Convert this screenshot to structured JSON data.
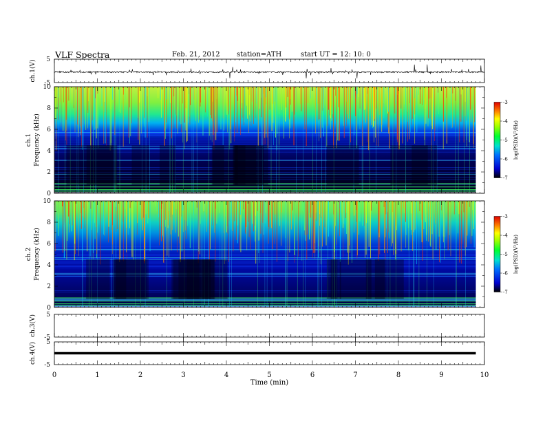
{
  "header": {
    "title": "VLF  Spectra",
    "date": "Feb. 21, 2012",
    "station": "station=ATH",
    "start": "start  UT  =    12: 10: 0"
  },
  "colors": {
    "spectrum_scale": [
      "#000000",
      "#0000e0",
      "#0078ff",
      "#00e0d0",
      "#00ff30",
      "#90ff00",
      "#ffff00",
      "#ff8000",
      "#e80000"
    ]
  },
  "chart_data": [
    {
      "id": "ch1-waveform",
      "type": "line",
      "ylabel": "ch.1(V)",
      "ylim": [
        -5,
        5
      ],
      "yticks": [
        "5",
        "-5"
      ],
      "baseline": -0.5,
      "xlim": [
        0,
        10
      ]
    },
    {
      "id": "ch1-spectrogram",
      "type": "heatmap",
      "ylabel_channel": "ch.1",
      "ylabel": "Frequency  (kHz)",
      "ylim": [
        0,
        10
      ],
      "yticks": [
        "0",
        "2",
        "4",
        "6",
        "8",
        "10"
      ],
      "xlim": [
        0,
        9.8
      ],
      "colorbar": {
        "label": "log(PSD)(V²/Hz)",
        "range": [
          -7,
          -3
        ],
        "ticks": [
          "-3",
          "-4",
          "-5",
          "-6",
          "-7"
        ]
      }
    },
    {
      "id": "ch2-spectrogram",
      "type": "heatmap",
      "ylabel_channel": "ch.2",
      "ylabel": "Frequency  (kHz)",
      "ylim": [
        0,
        10
      ],
      "yticks": [
        "0",
        "2",
        "4",
        "6",
        "8",
        "10"
      ],
      "xlim": [
        0,
        9.8
      ],
      "colorbar": {
        "label": "log(PSD)(V²/Hz)",
        "range": [
          -7,
          -3
        ],
        "ticks": [
          "-3",
          "-4",
          "-5",
          "-6",
          "-7"
        ]
      }
    },
    {
      "id": "ch3-waveform",
      "type": "line",
      "ylabel": "ch.3(V)",
      "ylim": [
        -5,
        5
      ],
      "yticks": [
        "5",
        "-5"
      ],
      "baseline": null,
      "xlim": [
        0,
        10
      ]
    },
    {
      "id": "ch4-waveform",
      "type": "line",
      "ylabel": "ch.4(V)",
      "ylim": [
        -5,
        5
      ],
      "yticks": [
        "5",
        "-5"
      ],
      "baseline": 0,
      "xlim": [
        0,
        9.8
      ]
    }
  ],
  "xaxis": {
    "label": "Time  (min)",
    "range": [
      0,
      10
    ],
    "ticks": [
      "0",
      "1",
      "2",
      "3",
      "4",
      "5",
      "6",
      "7",
      "8",
      "9",
      "10"
    ]
  }
}
